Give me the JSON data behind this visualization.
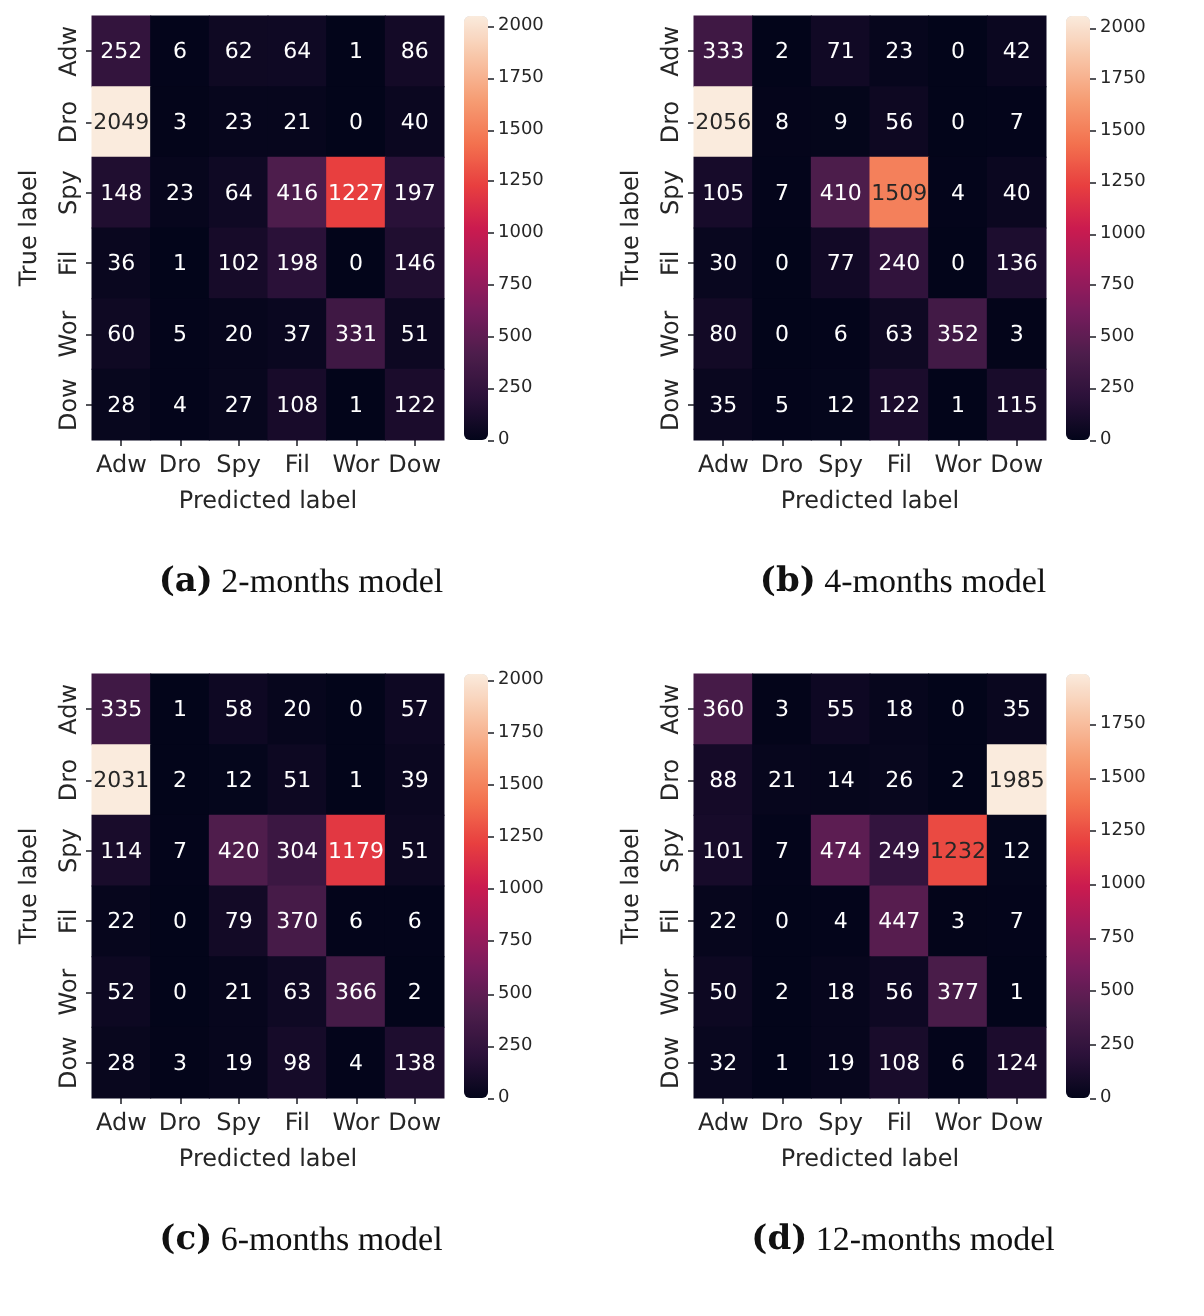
{
  "chart_data": [
    {
      "type": "heatmap",
      "xlabel": "Predicted label",
      "ylabel": "True label",
      "categories": [
        "Adw",
        "Dro",
        "Spy",
        "Fil",
        "Wor",
        "Dow"
      ],
      "y_categories": [
        "Adw",
        "Dro",
        "Spy",
        "Fil",
        "Wor",
        "Dow"
      ],
      "cells": [
        [
          252,
          6,
          62,
          64,
          1,
          86
        ],
        [
          2049,
          3,
          23,
          21,
          0,
          40
        ],
        [
          148,
          23,
          64,
          416,
          1227,
          197
        ],
        [
          36,
          1,
          102,
          198,
          0,
          146
        ],
        [
          60,
          5,
          20,
          37,
          331,
          51
        ],
        [
          28,
          4,
          27,
          108,
          1,
          122
        ]
      ],
      "clim": [
        0,
        2049
      ],
      "cticks": [
        0,
        250,
        500,
        750,
        1000,
        1250,
        1500,
        1750,
        2000
      ],
      "data_labels": true,
      "annotations": [
        "(a) 2-months model"
      ]
    },
    {
      "type": "heatmap",
      "xlabel": "Predicted label",
      "ylabel": "True label",
      "categories": [
        "Adw",
        "Dro",
        "Spy",
        "Fil",
        "Wor",
        "Dow"
      ],
      "y_categories": [
        "Adw",
        "Dro",
        "Spy",
        "Fil",
        "Wor",
        "Dow"
      ],
      "cells": [
        [
          333,
          2,
          71,
          23,
          0,
          42
        ],
        [
          2056,
          8,
          9,
          56,
          0,
          7
        ],
        [
          105,
          7,
          410,
          1509,
          4,
          40
        ],
        [
          30,
          0,
          77,
          240,
          0,
          136
        ],
        [
          80,
          0,
          6,
          63,
          352,
          3
        ],
        [
          35,
          5,
          12,
          122,
          1,
          115
        ]
      ],
      "clim": [
        0,
        2056
      ],
      "cticks": [
        0,
        250,
        500,
        750,
        1000,
        1250,
        1500,
        1750,
        2000
      ],
      "data_labels": true,
      "annotations": [
        "(b) 4-months model"
      ]
    },
    {
      "type": "heatmap",
      "xlabel": "Predicted label",
      "ylabel": "True label",
      "categories": [
        "Adw",
        "Dro",
        "Spy",
        "Fil",
        "Wor",
        "Dow"
      ],
      "y_categories": [
        "Adw",
        "Dro",
        "Spy",
        "Fil",
        "Wor",
        "Dow"
      ],
      "cells": [
        [
          335,
          1,
          58,
          20,
          0,
          57
        ],
        [
          2031,
          2,
          12,
          51,
          1,
          39
        ],
        [
          114,
          7,
          420,
          304,
          1179,
          51
        ],
        [
          22,
          0,
          79,
          370,
          6,
          6
        ],
        [
          52,
          0,
          21,
          63,
          366,
          2
        ],
        [
          28,
          3,
          19,
          98,
          4,
          138
        ]
      ],
      "clim": [
        0,
        2031
      ],
      "cticks": [
        0,
        250,
        500,
        750,
        1000,
        1250,
        1500,
        1750,
        2000
      ],
      "data_labels": true,
      "annotations": [
        "(c) 6-months model"
      ]
    },
    {
      "type": "heatmap",
      "xlabel": "Predicted label",
      "ylabel": "True label",
      "categories": [
        "Adw",
        "Dro",
        "Spy",
        "Fil",
        "Wor",
        "Dow"
      ],
      "y_categories": [
        "Adw",
        "Dro",
        "Spy",
        "Fil",
        "Wor",
        "Dow"
      ],
      "cells": [
        [
          360,
          3,
          55,
          18,
          0,
          35
        ],
        [
          88,
          21,
          14,
          26,
          2,
          1985
        ],
        [
          101,
          7,
          474,
          249,
          1232,
          12
        ],
        [
          22,
          0,
          4,
          447,
          3,
          7
        ],
        [
          50,
          2,
          18,
          56,
          377,
          1
        ],
        [
          32,
          1,
          19,
          108,
          6,
          124
        ]
      ],
      "clim": [
        0,
        1985
      ],
      "cticks": [
        0,
        250,
        500,
        750,
        1000,
        1250,
        1500,
        1750
      ],
      "data_labels": true,
      "annotations": [
        "(d) 12-months model"
      ]
    }
  ]
}
